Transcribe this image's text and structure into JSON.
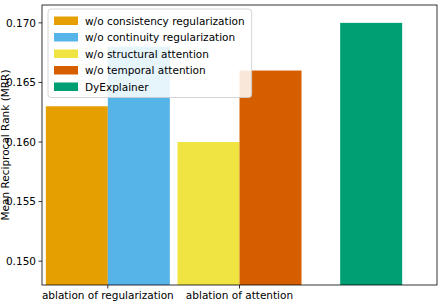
{
  "chart_data": {
    "type": "bar",
    "y_label": "Mean Reciprocal Rank (MRR)",
    "categories": [
      "ablation of regularization",
      "ablation of attention",
      null
    ],
    "series": [
      {
        "name": "w/o consistency regularization",
        "color": "#e69f00",
        "values": [
          0.163,
          null,
          null
        ]
      },
      {
        "name": "w/o continuity regularization",
        "color": "#56b4e9",
        "values": [
          0.168,
          null,
          null
        ]
      },
      {
        "name": "w/o structural attention",
        "color": "#f0e442",
        "values": [
          null,
          0.16,
          null
        ]
      },
      {
        "name": "w/o temporal attention",
        "color": "#d55e00",
        "values": [
          null,
          0.166,
          null
        ]
      },
      {
        "name": "DyExplainer",
        "color": "#009e73",
        "values": [
          null,
          null,
          0.17
        ]
      }
    ],
    "ylim": [
      0.148,
      0.1715
    ],
    "yticks": [
      {
        "value": 0.15,
        "label": "0.150"
      },
      0.155,
      {
        "value": 0.16,
        "label": "0.160"
      },
      0.165,
      {
        "value": 0.17,
        "label": "0.170"
      }
    ],
    "grid": false,
    "legend": "upper left"
  }
}
